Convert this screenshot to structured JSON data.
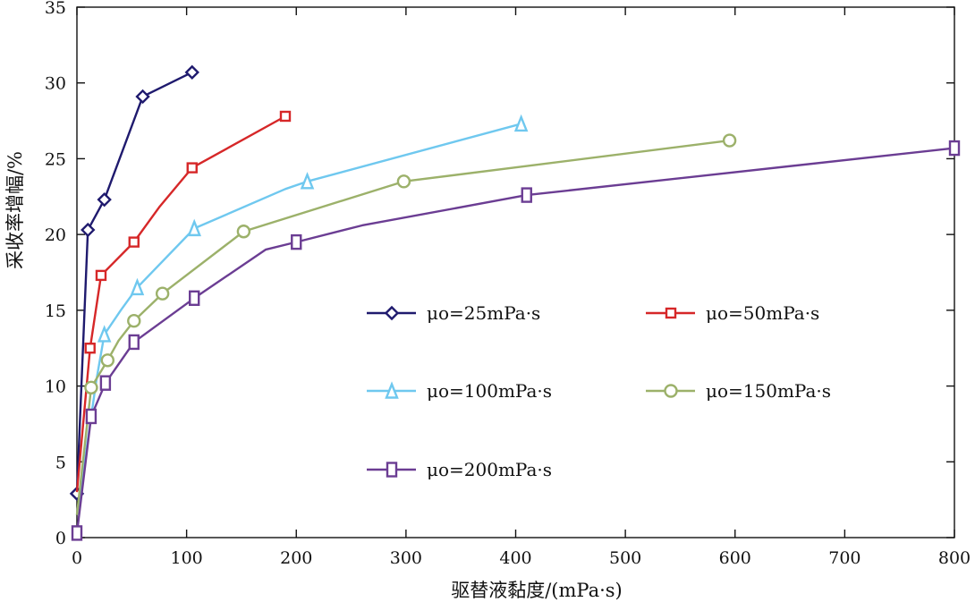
{
  "chart_data": {
    "type": "line",
    "title": "",
    "xlabel": "驱替液黏度/(mPa·s)",
    "ylabel": "采收率增幅/%",
    "xlim": [
      0,
      800
    ],
    "ylim": [
      0,
      35
    ],
    "x_ticks": [
      0,
      100,
      200,
      300,
      400,
      500,
      600,
      700,
      800
    ],
    "y_ticks": [
      0,
      5,
      10,
      15,
      20,
      25,
      30,
      35
    ],
    "x_tick_labels": [
      "0",
      "100",
      "200",
      "300",
      "400",
      "500",
      "600",
      "700",
      "800"
    ],
    "y_tick_labels": [
      "0",
      "5",
      "10",
      "15",
      "20",
      "25",
      "30",
      "35"
    ],
    "grid": false,
    "legend_position": "center-right",
    "series": [
      {
        "name": "μo=25mPa·s",
        "color": "#1f1a6e",
        "marker": "diamond",
        "points": [
          [
            0,
            2.9
          ],
          [
            10,
            20.3
          ],
          [
            25,
            22.3
          ],
          [
            60,
            29.1
          ],
          [
            105,
            30.7
          ]
        ],
        "line": [
          [
            0,
            2.9
          ],
          [
            10,
            20.3
          ],
          [
            25,
            22.3
          ],
          [
            60,
            29.1
          ],
          [
            105,
            30.7
          ]
        ]
      },
      {
        "name": "μo=50mPa·s",
        "color": "#d62728",
        "marker": "square",
        "points": [
          [
            12,
            12.5
          ],
          [
            22,
            17.3
          ],
          [
            52,
            19.5
          ],
          [
            105,
            24.4
          ],
          [
            190,
            27.8
          ]
        ],
        "line": [
          [
            0,
            3.0
          ],
          [
            12,
            12.5
          ],
          [
            22,
            17.3
          ],
          [
            52,
            19.5
          ],
          [
            75,
            21.8
          ],
          [
            105,
            24.4
          ],
          [
            190,
            27.8
          ]
        ]
      },
      {
        "name": "μo=100mPa·s",
        "color": "#6fc8ef",
        "marker": "triangle",
        "points": [
          [
            25,
            13.4
          ],
          [
            55,
            16.5
          ],
          [
            107,
            20.4
          ],
          [
            210,
            23.5
          ],
          [
            405,
            27.3
          ]
        ],
        "line": [
          [
            0,
            1.5
          ],
          [
            18,
            10.5
          ],
          [
            25,
            13.4
          ],
          [
            40,
            15.0
          ],
          [
            55,
            16.5
          ],
          [
            107,
            20.4
          ],
          [
            190,
            23.0
          ],
          [
            210,
            23.5
          ],
          [
            405,
            27.3
          ]
        ]
      },
      {
        "name": "μo=150mPa·s",
        "color": "#9cb16a",
        "marker": "circle",
        "points": [
          [
            13,
            9.9
          ],
          [
            28,
            11.7
          ],
          [
            52,
            14.3
          ],
          [
            78,
            16.1
          ],
          [
            152,
            20.2
          ],
          [
            298,
            23.5
          ],
          [
            595,
            26.2
          ]
        ],
        "line": [
          [
            0,
            1.5
          ],
          [
            13,
            9.9
          ],
          [
            28,
            11.7
          ],
          [
            38,
            13.0
          ],
          [
            52,
            14.3
          ],
          [
            78,
            16.1
          ],
          [
            152,
            20.2
          ],
          [
            298,
            23.5
          ],
          [
            595,
            26.2
          ]
        ]
      },
      {
        "name": "μo=200mPa·s",
        "color": "#6b3d93",
        "marker": "square-tall",
        "points": [
          [
            0,
            0.3
          ],
          [
            13,
            8.0
          ],
          [
            26,
            10.2
          ],
          [
            52,
            12.9
          ],
          [
            107,
            15.8
          ],
          [
            200,
            19.5
          ],
          [
            410,
            22.6
          ],
          [
            800,
            25.7
          ]
        ],
        "line": [
          [
            0,
            0.3
          ],
          [
            13,
            8.0
          ],
          [
            26,
            10.2
          ],
          [
            52,
            12.9
          ],
          [
            107,
            15.8
          ],
          [
            172,
            19.0
          ],
          [
            200,
            19.5
          ],
          [
            260,
            20.6
          ],
          [
            410,
            22.6
          ],
          [
            800,
            25.7
          ]
        ]
      }
    ]
  }
}
